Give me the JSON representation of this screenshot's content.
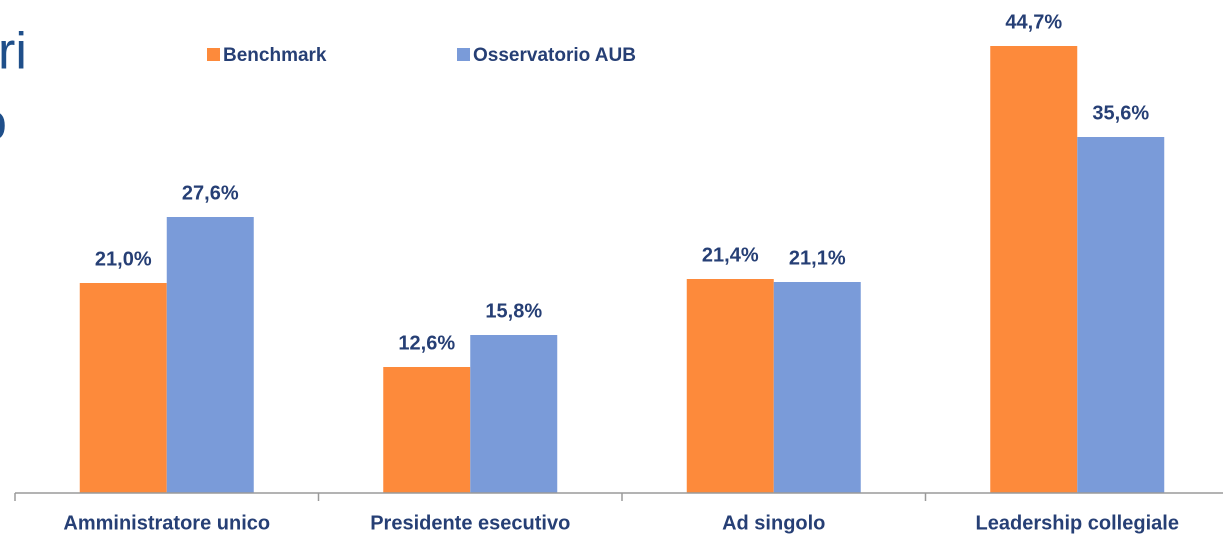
{
  "chart_data": {
    "type": "bar",
    "annotations": [
      "ri",
      "o"
    ],
    "categories": [
      "Amministratore unico",
      "Presidente esecutivo",
      "Ad singolo",
      "Leadership collegiale"
    ],
    "series": [
      {
        "name": "Benchmark",
        "color": "#fd8a3b",
        "values": [
          21.0,
          12.6,
          21.4,
          44.7
        ],
        "value_labels": [
          "21,0%",
          "12,6%",
          "21,4%",
          "44,7%"
        ]
      },
      {
        "name": "Osservatorio AUB",
        "color": "#7a9bd9",
        "values": [
          27.6,
          15.8,
          21.1,
          35.6
        ],
        "value_labels": [
          "27,6%",
          "15,8%",
          "21,1%",
          "35,6%"
        ]
      }
    ],
    "ylim": [
      0,
      45
    ]
  }
}
